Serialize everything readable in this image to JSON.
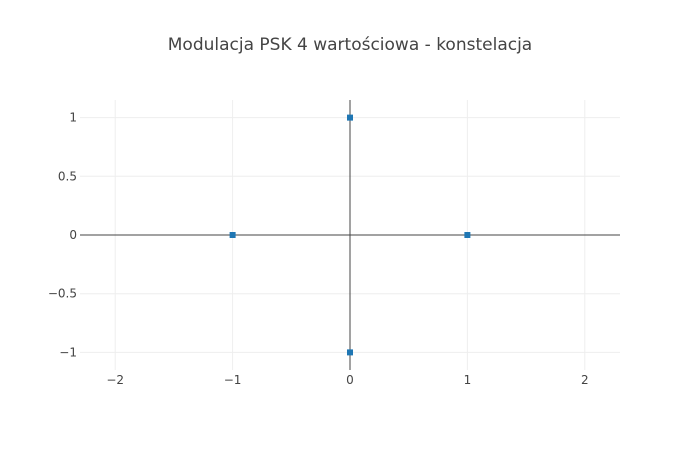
{
  "chart_data": {
    "type": "scatter",
    "title": "Modulacja PSK 4 wartościowa - konstelacja",
    "xlabel": "",
    "ylabel": "",
    "xlim": [
      -2.3,
      2.3
    ],
    "ylim": [
      -1.15,
      1.15
    ],
    "x_ticks": [
      -2,
      -1,
      0,
      1,
      2
    ],
    "y_ticks": [
      1,
      0.5,
      0,
      -0.5,
      -1
    ],
    "x_tick_labels": [
      "−2",
      "−1",
      "0",
      "1",
      "2"
    ],
    "y_tick_labels": [
      "1",
      "0.5",
      "0",
      "−0.5",
      "−1"
    ],
    "grid": true,
    "zero_lines": true,
    "legend": "none",
    "colors": {
      "marker": "#1f77b4",
      "grid": "#eeeeee",
      "zero_line": "#444444",
      "title": "#444444",
      "tick_label": "#444444"
    },
    "series": [
      {
        "x": [
          1,
          0,
          -1,
          0
        ],
        "y": [
          0,
          1,
          0,
          -1
        ]
      }
    ]
  }
}
